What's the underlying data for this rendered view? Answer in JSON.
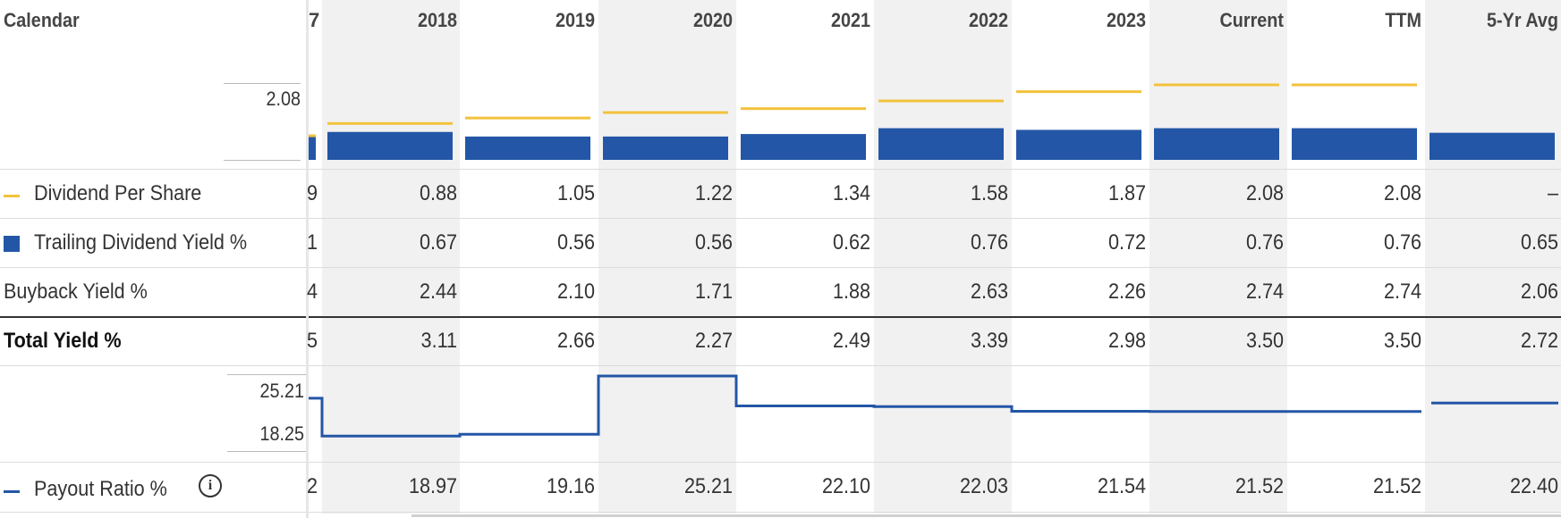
{
  "header": {
    "calendar_label": "Calendar",
    "partial_col_header": "7",
    "columns": [
      "2018",
      "2019",
      "2020",
      "2021",
      "2022",
      "2023",
      "Current",
      "TTM",
      "5-Yr Avg"
    ]
  },
  "dividend_chart": {
    "axis_label": "2.08"
  },
  "rows": {
    "dividend_per_share": {
      "label": "Dividend Per Share",
      "partial": "9",
      "values": [
        "0.88",
        "1.05",
        "1.22",
        "1.34",
        "1.58",
        "1.87",
        "2.08",
        "2.08",
        "–"
      ]
    },
    "trailing_yield": {
      "label": "Trailing Dividend Yield %",
      "partial": "1",
      "values": [
        "0.67",
        "0.56",
        "0.56",
        "0.62",
        "0.76",
        "0.72",
        "0.76",
        "0.76",
        "0.65"
      ]
    },
    "buyback_yield": {
      "label": "Buyback Yield %",
      "partial": "4",
      "values": [
        "2.44",
        "2.10",
        "1.71",
        "1.88",
        "2.63",
        "2.26",
        "2.74",
        "2.74",
        "2.06"
      ]
    },
    "total_yield": {
      "label": "Total Yield %",
      "partial": "5",
      "values": [
        "3.11",
        "2.66",
        "2.27",
        "2.49",
        "3.39",
        "2.98",
        "3.50",
        "3.50",
        "2.72"
      ]
    },
    "payout_ratio": {
      "label": "Payout Ratio %",
      "partial": "2",
      "values": [
        "18.97",
        "19.16",
        "25.21",
        "22.10",
        "22.03",
        "21.54",
        "21.52",
        "21.52",
        "22.40"
      ]
    }
  },
  "payout_chart": {
    "axis_max_label": "25.21",
    "axis_min_label": "18.25"
  },
  "colors": {
    "dividend_line": "#f2c23c",
    "yield_bar": "#2356a6",
    "payout_line": "#2356a6"
  },
  "chart_data": {
    "type": "bar",
    "categories": [
      "2018",
      "2019",
      "2020",
      "2021",
      "2022",
      "2023",
      "Current",
      "TTM",
      "5-Yr Avg"
    ],
    "series": [
      {
        "name": "Dividend Per Share",
        "type": "line",
        "values": [
          0.88,
          1.05,
          1.22,
          1.34,
          1.58,
          1.87,
          2.08,
          2.08,
          null
        ]
      },
      {
        "name": "Trailing Dividend Yield %",
        "type": "bar",
        "values": [
          0.67,
          0.56,
          0.56,
          0.62,
          0.76,
          0.72,
          0.76,
          0.76,
          0.65
        ]
      },
      {
        "name": "Payout Ratio %",
        "type": "step-line",
        "values": [
          18.97,
          19.16,
          25.21,
          22.1,
          22.03,
          21.54,
          21.52,
          21.52,
          22.4
        ]
      }
    ]
  }
}
